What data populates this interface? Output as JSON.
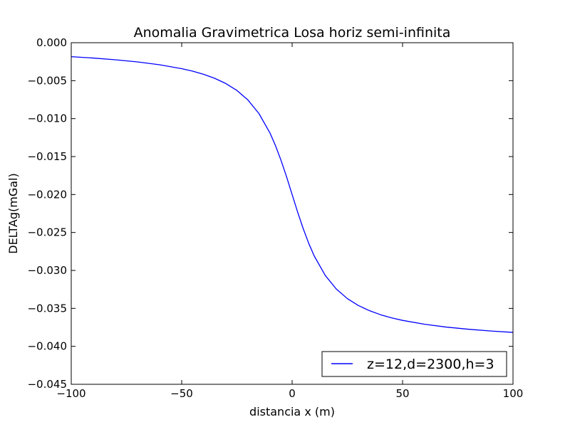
{
  "chart_data": {
    "type": "line",
    "title": "Anomalia Gravimetrica Losa horiz semi-infinita",
    "xlabel": "distancia x (m)",
    "ylabel": "DELTAg(mGal)",
    "xlim": [
      -100,
      100
    ],
    "ylim": [
      -0.045,
      0.0
    ],
    "grid": false,
    "legend_position": "lower-right",
    "x_ticks": [
      -100,
      -50,
      0,
      50,
      100
    ],
    "x_tick_labels": [
      "−100",
      "−50",
      "0",
      "50",
      "100"
    ],
    "y_ticks": [
      0.0,
      -0.005,
      -0.01,
      -0.015,
      -0.02,
      -0.025,
      -0.03,
      -0.035,
      -0.04,
      -0.045
    ],
    "y_tick_labels": [
      "0.000",
      "−0.005",
      "−0.010",
      "−0.015",
      "−0.020",
      "−0.025",
      "−0.030",
      "−0.035",
      "−0.040",
      "−0.045"
    ],
    "series": [
      {
        "name": "z=12,d=2300,h=3",
        "color": "#0000ff",
        "x": [
          -100,
          -90,
          -80,
          -70,
          -60,
          -50,
          -45,
          -40,
          -35,
          -30,
          -25,
          -20,
          -15,
          -10,
          -7.5,
          -5,
          -2.5,
          0,
          2.5,
          5,
          7.5,
          10,
          15,
          20,
          25,
          30,
          35,
          40,
          45,
          50,
          60,
          70,
          80,
          90,
          100
        ],
        "y": [
          -0.00184,
          -0.00202,
          -0.00225,
          -0.00253,
          -0.00291,
          -0.00342,
          -0.00375,
          -0.00417,
          -0.0047,
          -0.00538,
          -0.00629,
          -0.00755,
          -0.00934,
          -0.01191,
          -0.01358,
          -0.01552,
          -0.01768,
          -0.02,
          -0.02232,
          -0.02448,
          -0.02642,
          -0.02809,
          -0.03066,
          -0.03245,
          -0.03371,
          -0.03462,
          -0.0353,
          -0.03583,
          -0.03625,
          -0.03658,
          -0.03709,
          -0.03747,
          -0.03775,
          -0.03798,
          -0.03816
        ]
      }
    ]
  }
}
